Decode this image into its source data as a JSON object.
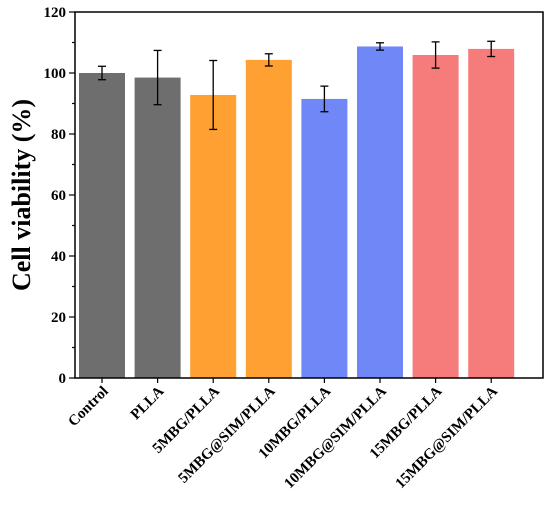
{
  "chart_data": {
    "type": "bar",
    "title": "",
    "xlabel": "",
    "ylabel": "Cell viability (%)",
    "ylim": [
      0,
      120
    ],
    "yticks": [
      0,
      20,
      40,
      60,
      80,
      100,
      120
    ],
    "grid": false,
    "legend": "none",
    "categories": [
      "Control",
      "PLLA",
      "5MBG/PLLA",
      "5MBG@SIM/PLLA",
      "10MBG/PLLA",
      "10MBG@SIM/PLLA",
      "15MBG/PLLA",
      "15MBG@SIM/PLLA"
    ],
    "values": [
      100,
      98.5,
      92.8,
      104.3,
      91.5,
      108.7,
      105.9,
      107.9
    ],
    "errors": [
      2.2,
      8.9,
      11.3,
      2.0,
      4.2,
      1.2,
      4.3,
      2.5
    ],
    "colors": [
      "#6e6e6e",
      "#6e6e6e",
      "#ffa033",
      "#ffa033",
      "#7087f8",
      "#7087f8",
      "#f67b7b",
      "#f67b7b"
    ]
  }
}
